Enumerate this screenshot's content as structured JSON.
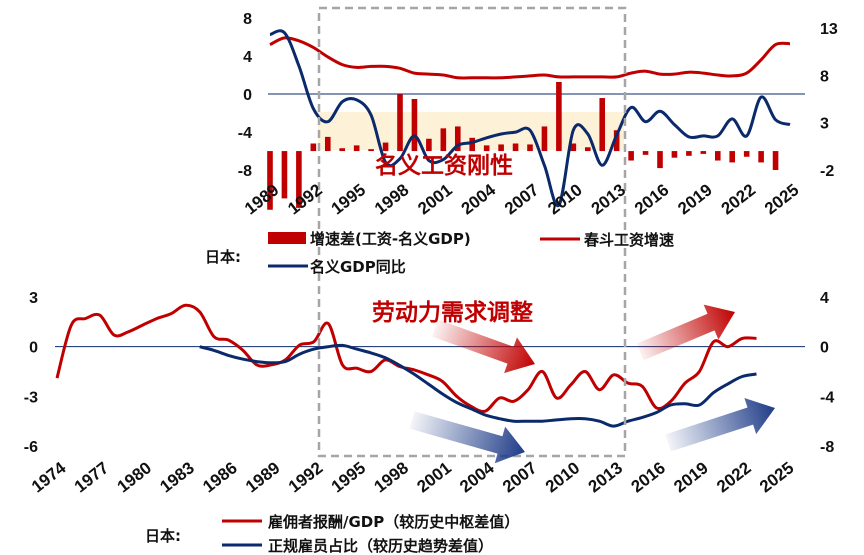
{
  "colors": {
    "red": "#c00000",
    "navy": "#0b2a6b",
    "shade": "#fdf2d8",
    "box": "#a6a6a6"
  },
  "chart_data": [
    {
      "type": "bar+line",
      "annotation": "名义工资刚性",
      "legend_prefix": "日本:",
      "legend": [
        "增速差(工资-名义GDP)",
        "春斗工资增速",
        "名义GDP同比"
      ],
      "ylim_left": [
        -8,
        8
      ],
      "yticks_left": [
        "8",
        "4",
        "0",
        "-4",
        "-8"
      ],
      "ylim_right": [
        -2,
        13
      ],
      "yticks_right": [
        "13",
        "8",
        "3",
        "-2"
      ],
      "x_ticks": [
        "1989",
        "1992",
        "1995",
        "1998",
        "2001",
        "2004",
        "2007",
        "2010",
        "2013",
        "2016",
        "2019",
        "2022",
        "2025"
      ],
      "bars": {
        "name": "增速差(工资-名义GDP)",
        "x": [
          1989,
          1990,
          1991,
          1992,
          1993,
          1994,
          1995,
          1996,
          1997,
          1998,
          1999,
          2000,
          2001,
          2002,
          2003,
          2004,
          2005,
          2006,
          2007,
          2008,
          2009,
          2010,
          2011,
          2012,
          2013,
          2014,
          2015,
          2016,
          2017,
          2018,
          2019,
          2020,
          2021,
          2022,
          2023,
          2024
        ],
        "values": [
          -6.2,
          -5.0,
          -6.0,
          0.8,
          1.5,
          0.3,
          0.6,
          0.2,
          0.9,
          6.0,
          5.5,
          1.3,
          2.4,
          2.6,
          1.4,
          0.6,
          0.7,
          0.8,
          0.7,
          2.6,
          7.3,
          0.8,
          0.4,
          5.6,
          2.2,
          -1.0,
          -0.4,
          -1.8,
          -0.7,
          -0.5,
          -0.3,
          -1.0,
          -1.2,
          -0.6,
          -1.2,
          -2.0
        ]
      },
      "line_wage": {
        "name": "春斗工资增速",
        "x": [
          1989,
          1990,
          1991,
          1992,
          1993,
          1994,
          1995,
          1996,
          1997,
          1998,
          1999,
          2000,
          2001,
          2002,
          2003,
          2004,
          2005,
          2006,
          2007,
          2008,
          2009,
          2010,
          2011,
          2012,
          2013,
          2014,
          2015,
          2016,
          2017,
          2018,
          2019,
          2020,
          2021,
          2022,
          2023,
          2024,
          2025
        ],
        "values": [
          5.2,
          5.9,
          5.6,
          4.9,
          3.9,
          3.1,
          2.8,
          2.9,
          2.9,
          2.7,
          2.2,
          2.1,
          2.0,
          1.7,
          1.7,
          1.7,
          1.7,
          1.8,
          1.9,
          2.0,
          1.8,
          1.8,
          1.8,
          1.8,
          1.8,
          2.2,
          2.4,
          2.1,
          2.1,
          2.3,
          2.2,
          2.0,
          1.9,
          2.2,
          3.6,
          5.2,
          5.3
        ]
      },
      "line_gdp": {
        "name": "名义GDP同比",
        "x": [
          1989,
          1990,
          1991,
          1992,
          1993,
          1994,
          1995,
          1996,
          1997,
          1998,
          1999,
          2000,
          2001,
          2002,
          2003,
          2004,
          2005,
          2006,
          2007,
          2008,
          2009,
          2010,
          2011,
          2012,
          2013,
          2014,
          2015,
          2016,
          2017,
          2018,
          2019,
          2020,
          2021,
          2022,
          2023,
          2024,
          2025
        ],
        "values": [
          12.3,
          12.5,
          9.0,
          4.5,
          3.1,
          5.2,
          5.4,
          3.8,
          -1.2,
          -0.8,
          1.6,
          -1.0,
          -0.9,
          0.6,
          0.9,
          1.4,
          1.8,
          2.0,
          2.2,
          -1.5,
          -5.7,
          2.2,
          1.8,
          -1.5,
          1.7,
          4.6,
          3.1,
          4.2,
          2.8,
          1.5,
          1.6,
          1.6,
          3.4,
          1.6,
          5.7,
          3.3,
          2.8
        ]
      }
    },
    {
      "type": "line",
      "annotation": "劳动力需求调整",
      "legend_prefix": "日本:",
      "legend": [
        "雇佣者报酬/GDP（较历史中枢差值）",
        "正规雇员占比（较历史趋势差值）"
      ],
      "ylim_left": [
        -6,
        3
      ],
      "yticks_left": [
        "3",
        "0",
        "-3",
        "-6"
      ],
      "ylim_right": [
        -8,
        4
      ],
      "yticks_right": [
        "4",
        "0",
        "-4",
        "-8"
      ],
      "x_ticks": [
        "1974",
        "1977",
        "1980",
        "1983",
        "1986",
        "1989",
        "1992",
        "1995",
        "1998",
        "2001",
        "2004",
        "2007",
        "2010",
        "2013",
        "2016",
        "2019",
        "2022",
        "2025"
      ],
      "line_comp": {
        "name": "雇佣者报酬/GDP（较历史中枢差值）",
        "x": [
          1974,
          1975,
          1976,
          1977,
          1978,
          1979,
          1980,
          1981,
          1982,
          1983,
          1984,
          1985,
          1986,
          1987,
          1988,
          1989,
          1990,
          1991,
          1992,
          1993,
          1994,
          1995,
          1996,
          1997,
          1998,
          1999,
          2000,
          2001,
          2002,
          2003,
          2004,
          2005,
          2006,
          2007,
          2008,
          2009,
          2010,
          2011,
          2012,
          2013,
          2014,
          2015,
          2016,
          2017,
          2018,
          2019,
          2020,
          2021,
          2022,
          2023
        ],
        "values": [
          -1.9,
          1.3,
          1.7,
          1.9,
          0.7,
          0.9,
          1.3,
          1.7,
          2.0,
          2.5,
          2.1,
          0.6,
          0.4,
          -0.2,
          -1.1,
          -1.1,
          -0.8,
          0.1,
          0.3,
          1.4,
          -1.1,
          -1.3,
          -1.5,
          -0.8,
          -1.2,
          -1.4,
          -1.7,
          -2.1,
          -3.0,
          -3.6,
          -3.9,
          -3.1,
          -3.3,
          -2.6,
          -1.5,
          -3.1,
          -2.3,
          -1.5,
          -2.6,
          -1.7,
          -2.2,
          -2.4,
          -3.7,
          -3.3,
          -2.2,
          -1.5,
          0.3,
          0.0,
          0.5,
          0.5
        ]
      },
      "line_regular": {
        "name": "正规雇员占比（较历史趋势差值）",
        "x": [
          1984,
          1985,
          1986,
          1987,
          1988,
          1989,
          1990,
          1991,
          1992,
          1993,
          1994,
          1995,
          1996,
          1997,
          1998,
          1999,
          2000,
          2001,
          2002,
          2003,
          2004,
          2005,
          2006,
          2007,
          2008,
          2009,
          2010,
          2011,
          2012,
          2013,
          2014,
          2015,
          2016,
          2017,
          2018,
          2019,
          2020,
          2021,
          2022,
          2023
        ],
        "values": [
          0.0,
          -0.3,
          -0.7,
          -1.0,
          -1.2,
          -1.3,
          -1.2,
          -0.6,
          -0.2,
          0.0,
          0.1,
          -0.2,
          -0.5,
          -0.9,
          -1.5,
          -2.2,
          -3.0,
          -3.8,
          -4.5,
          -5.0,
          -5.5,
          -5.8,
          -6.0,
          -6.0,
          -6.0,
          -5.9,
          -5.8,
          -5.8,
          -6.0,
          -6.4,
          -6.0,
          -5.7,
          -5.3,
          -4.7,
          -4.6,
          -4.7,
          -3.7,
          -3.0,
          -2.4,
          -2.2
        ]
      }
    }
  ]
}
